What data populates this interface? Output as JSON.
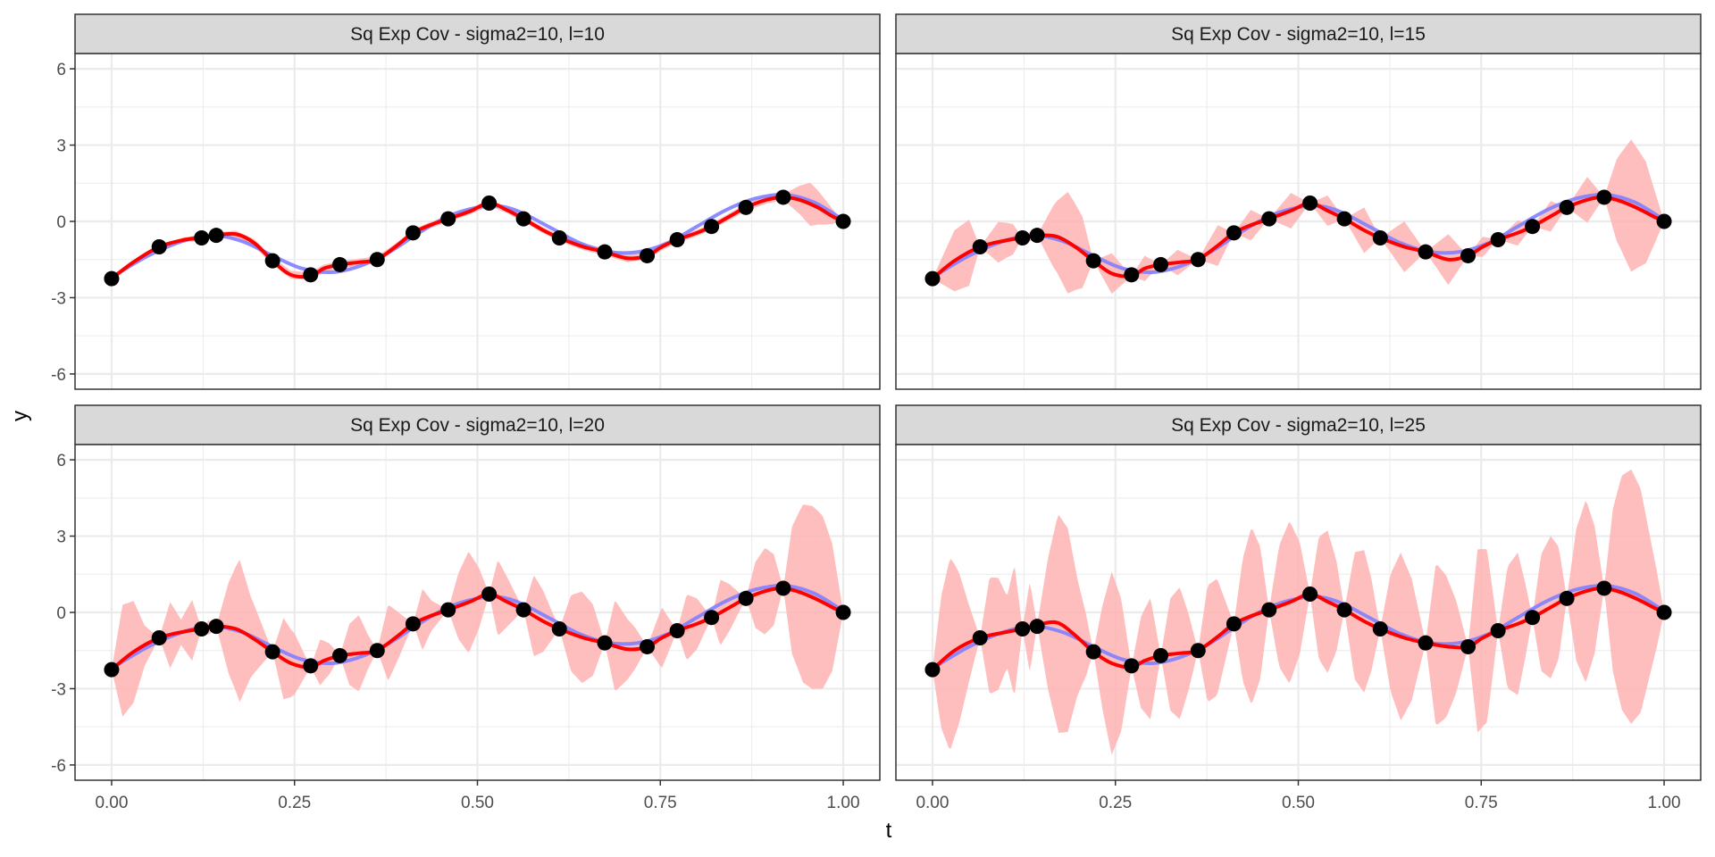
{
  "chart_data": {
    "type": "line",
    "xlabel": "t",
    "ylabel": "y",
    "xlim": [
      -0.05,
      1.05
    ],
    "ylim": [
      -6.6,
      6.6
    ],
    "x_ticks": [
      "0.00",
      "0.25",
      "0.50",
      "0.75",
      "1.00"
    ],
    "x_tick_values": [
      0,
      0.25,
      0.5,
      0.75,
      1
    ],
    "y_ticks": [
      "-6",
      "-3",
      "0",
      "3",
      "6"
    ],
    "y_tick_values": [
      -6,
      -3,
      0,
      3,
      6
    ],
    "grid": true,
    "colors": {
      "true_curve": "#7f7fff",
      "fit_curve": "#ff0000",
      "band": "#ffb3b3",
      "points": "#000000",
      "strip_bg": "#d9d9d9",
      "grid": "#ebebeb",
      "panel_border": "#333333"
    },
    "observations": {
      "t": [
        0.0,
        0.065,
        0.123,
        0.143,
        0.22,
        0.272,
        0.312,
        0.363,
        0.412,
        0.46,
        0.516,
        0.563,
        0.612,
        0.674,
        0.732,
        0.773,
        0.82,
        0.867,
        0.918,
        1.0
      ],
      "y": [
        -2.25,
        -1.0,
        -0.65,
        -0.55,
        -1.55,
        -2.1,
        -1.7,
        -1.5,
        -0.45,
        0.1,
        0.72,
        0.1,
        -0.65,
        -1.2,
        -1.35,
        -0.72,
        -0.2,
        0.55,
        0.95,
        0.0
      ]
    },
    "panels": [
      {
        "title": "Sq Exp Cov - sigma2=10, l=10",
        "fit": {
          "t": [
            0.0,
            0.03,
            0.065,
            0.1,
            0.123,
            0.143,
            0.17,
            0.195,
            0.22,
            0.245,
            0.272,
            0.29,
            0.312,
            0.34,
            0.363,
            0.39,
            0.412,
            0.435,
            0.46,
            0.49,
            0.516,
            0.54,
            0.563,
            0.59,
            0.612,
            0.645,
            0.674,
            0.705,
            0.732,
            0.752,
            0.773,
            0.8,
            0.82,
            0.845,
            0.867,
            0.895,
            0.918,
            0.94,
            0.965,
            0.985,
            1.0
          ],
          "y": [
            -2.25,
            -1.6,
            -1.0,
            -0.72,
            -0.65,
            -0.55,
            -0.5,
            -0.85,
            -1.55,
            -2.1,
            -2.15,
            -1.85,
            -1.7,
            -1.6,
            -1.5,
            -0.95,
            -0.45,
            -0.15,
            0.1,
            0.4,
            0.72,
            0.45,
            0.1,
            -0.35,
            -0.65,
            -1.0,
            -1.2,
            -1.45,
            -1.35,
            -1.0,
            -0.72,
            -0.45,
            -0.2,
            0.2,
            0.55,
            0.85,
            0.95,
            0.85,
            0.55,
            0.2,
            0.0
          ]
        },
        "band_halfwidth": {
          "t": [
            0.0,
            0.1,
            0.2,
            0.3,
            0.4,
            0.5,
            0.6,
            0.7,
            0.8,
            0.9,
            0.918,
            0.935,
            0.955,
            0.975,
            1.0
          ],
          "w": [
            0.0,
            0.1,
            0.15,
            0.15,
            0.12,
            0.12,
            0.12,
            0.15,
            0.12,
            0.15,
            0.1,
            0.45,
            0.85,
            0.5,
            0.0
          ]
        }
      },
      {
        "title": "Sq Exp Cov - sigma2=10, l=15",
        "fit": {
          "t": [
            0.0,
            0.03,
            0.065,
            0.1,
            0.123,
            0.143,
            0.17,
            0.195,
            0.22,
            0.245,
            0.272,
            0.29,
            0.312,
            0.34,
            0.363,
            0.39,
            0.412,
            0.435,
            0.46,
            0.49,
            0.516,
            0.54,
            0.563,
            0.59,
            0.612,
            0.645,
            0.674,
            0.705,
            0.732,
            0.752,
            0.773,
            0.8,
            0.82,
            0.845,
            0.867,
            0.895,
            0.918,
            0.94,
            0.965,
            0.985,
            1.0
          ],
          "y": [
            -2.25,
            -1.55,
            -1.0,
            -0.75,
            -0.65,
            -0.55,
            -0.6,
            -1.0,
            -1.55,
            -2.05,
            -2.15,
            -1.85,
            -1.7,
            -1.6,
            -1.5,
            -0.95,
            -0.45,
            -0.15,
            0.1,
            0.42,
            0.72,
            0.42,
            0.1,
            -0.35,
            -0.65,
            -1.0,
            -1.2,
            -1.5,
            -1.35,
            -1.0,
            -0.72,
            -0.45,
            -0.2,
            0.2,
            0.55,
            0.85,
            0.95,
            0.8,
            0.5,
            0.2,
            0.0
          ]
        },
        "band_halfwidth": {
          "t": [
            0.0,
            0.03,
            0.05,
            0.065,
            0.09,
            0.11,
            0.123,
            0.133,
            0.143,
            0.165,
            0.185,
            0.205,
            0.22,
            0.245,
            0.272,
            0.29,
            0.312,
            0.335,
            0.363,
            0.39,
            0.412,
            0.435,
            0.46,
            0.49,
            0.516,
            0.54,
            0.563,
            0.59,
            0.612,
            0.645,
            0.674,
            0.705,
            0.732,
            0.752,
            0.773,
            0.8,
            0.82,
            0.845,
            0.867,
            0.895,
            0.918,
            0.935,
            0.955,
            0.975,
            1.0
          ],
          "w": [
            0.0,
            1.2,
            1.3,
            0.0,
            0.8,
            0.6,
            0.0,
            0.2,
            0.0,
            1.2,
            2.0,
            1.4,
            0.0,
            0.8,
            0.0,
            0.5,
            0.0,
            0.5,
            0.0,
            0.8,
            0.0,
            0.6,
            0.0,
            0.7,
            0.0,
            0.6,
            0.0,
            0.9,
            0.0,
            1.0,
            0.0,
            1.0,
            0.0,
            0.4,
            0.0,
            0.5,
            0.0,
            0.6,
            0.0,
            0.9,
            0.0,
            1.6,
            2.6,
            2.0,
            0.0
          ]
        }
      },
      {
        "title": "Sq Exp Cov - sigma2=10, l=20",
        "fit": {
          "t": [
            0.0,
            0.03,
            0.065,
            0.1,
            0.123,
            0.143,
            0.17,
            0.195,
            0.22,
            0.245,
            0.272,
            0.29,
            0.312,
            0.34,
            0.363,
            0.39,
            0.412,
            0.435,
            0.46,
            0.49,
            0.516,
            0.54,
            0.563,
            0.59,
            0.612,
            0.645,
            0.674,
            0.705,
            0.732,
            0.752,
            0.773,
            0.8,
            0.82,
            0.845,
            0.867,
            0.895,
            0.918,
            0.94,
            0.965,
            0.985,
            1.0
          ],
          "y": [
            -2.25,
            -1.55,
            -1.0,
            -0.75,
            -0.65,
            -0.55,
            -0.65,
            -1.05,
            -1.55,
            -2.0,
            -2.15,
            -1.9,
            -1.7,
            -1.6,
            -1.5,
            -0.95,
            -0.45,
            -0.15,
            0.1,
            0.42,
            0.72,
            0.42,
            0.1,
            -0.35,
            -0.65,
            -1.0,
            -1.2,
            -1.45,
            -1.35,
            -1.0,
            -0.72,
            -0.45,
            -0.2,
            0.2,
            0.55,
            0.85,
            0.95,
            0.8,
            0.5,
            0.2,
            0.0
          ]
        },
        "band_halfwidth": {
          "t": [
            0.0,
            0.015,
            0.03,
            0.045,
            0.065,
            0.08,
            0.095,
            0.11,
            0.123,
            0.133,
            0.143,
            0.16,
            0.175,
            0.19,
            0.205,
            0.22,
            0.235,
            0.25,
            0.272,
            0.285,
            0.298,
            0.312,
            0.325,
            0.338,
            0.35,
            0.363,
            0.378,
            0.39,
            0.412,
            0.425,
            0.437,
            0.46,
            0.474,
            0.488,
            0.502,
            0.516,
            0.528,
            0.54,
            0.563,
            0.577,
            0.59,
            0.612,
            0.628,
            0.643,
            0.658,
            0.674,
            0.688,
            0.702,
            0.716,
            0.732,
            0.752,
            0.773,
            0.786,
            0.8,
            0.82,
            0.832,
            0.845,
            0.867,
            0.88,
            0.893,
            0.905,
            0.918,
            0.93,
            0.945,
            0.958,
            0.972,
            0.985,
            1.0
          ],
          "w": [
            0.0,
            2.2,
            2.0,
            0.8,
            0.0,
            1.3,
            0.5,
            1.2,
            0.0,
            0.3,
            0.0,
            1.8,
            2.8,
            1.6,
            0.8,
            0.0,
            1.6,
            1.2,
            0.0,
            0.9,
            0.6,
            0.0,
            1.2,
            1.5,
            0.7,
            0.0,
            1.5,
            1.0,
            0.0,
            1.2,
            0.6,
            0.0,
            1.3,
            2.0,
            1.2,
            0.0,
            1.5,
            1.0,
            0.0,
            1.6,
            1.2,
            0.0,
            1.5,
            1.8,
            1.4,
            0.0,
            1.8,
            1.3,
            0.8,
            0.0,
            1.2,
            0.0,
            1.3,
            1.0,
            0.0,
            1.3,
            0.9,
            0.0,
            1.3,
            1.7,
            1.4,
            0.0,
            2.5,
            3.5,
            3.6,
            3.4,
            2.5,
            0.0
          ]
        }
      },
      {
        "title": "Sq Exp Cov - sigma2=10, l=25",
        "fit": {
          "t": [
            0.0,
            0.03,
            0.065,
            0.1,
            0.123,
            0.143,
            0.17,
            0.195,
            0.22,
            0.245,
            0.272,
            0.29,
            0.312,
            0.34,
            0.363,
            0.39,
            0.412,
            0.435,
            0.46,
            0.49,
            0.516,
            0.54,
            0.563,
            0.59,
            0.612,
            0.645,
            0.674,
            0.705,
            0.732,
            0.752,
            0.773,
            0.8,
            0.82,
            0.845,
            0.867,
            0.895,
            0.918,
            0.94,
            0.965,
            0.985,
            1.0
          ],
          "y": [
            -2.25,
            -1.5,
            -1.0,
            -0.78,
            -0.65,
            -0.5,
            -0.4,
            -0.9,
            -1.55,
            -2.0,
            -2.15,
            -1.9,
            -1.7,
            -1.6,
            -1.5,
            -0.95,
            -0.45,
            -0.15,
            0.1,
            0.42,
            0.72,
            0.42,
            0.1,
            -0.35,
            -0.65,
            -1.0,
            -1.2,
            -1.35,
            -1.35,
            -1.0,
            -0.72,
            -0.45,
            -0.2,
            0.2,
            0.55,
            0.85,
            0.95,
            0.8,
            0.5,
            0.2,
            0.0
          ]
        },
        "band_halfwidth": {
          "t": [
            0.0,
            0.012,
            0.024,
            0.036,
            0.05,
            0.065,
            0.078,
            0.09,
            0.102,
            0.112,
            0.123,
            0.133,
            0.143,
            0.158,
            0.172,
            0.185,
            0.198,
            0.21,
            0.22,
            0.232,
            0.245,
            0.258,
            0.272,
            0.285,
            0.298,
            0.312,
            0.325,
            0.338,
            0.35,
            0.363,
            0.376,
            0.389,
            0.4,
            0.412,
            0.424,
            0.436,
            0.448,
            0.46,
            0.474,
            0.488,
            0.502,
            0.516,
            0.528,
            0.54,
            0.552,
            0.563,
            0.577,
            0.59,
            0.6,
            0.612,
            0.626,
            0.64,
            0.655,
            0.674,
            0.688,
            0.702,
            0.716,
            0.732,
            0.745,
            0.758,
            0.773,
            0.786,
            0.8,
            0.81,
            0.82,
            0.832,
            0.845,
            0.856,
            0.867,
            0.88,
            0.893,
            0.905,
            0.918,
            0.93,
            0.942,
            0.955,
            0.968,
            0.98,
            0.99,
            1.0
          ],
          "w": [
            0.0,
            2.6,
            3.8,
            3.0,
            1.5,
            0.0,
            2.3,
            2.2,
            1.4,
            2.6,
            0.0,
            1.8,
            0.0,
            2.6,
            4.3,
            4.0,
            2.3,
            1.2,
            0.0,
            2.0,
            3.6,
            2.6,
            0.0,
            1.8,
            2.4,
            0.0,
            2.2,
            2.6,
            1.5,
            0.0,
            2.3,
            2.3,
            1.2,
            0.0,
            2.4,
            3.5,
            2.6,
            0.0,
            2.4,
            3.2,
            2.2,
            0.0,
            2.4,
            2.8,
            1.8,
            0.0,
            2.5,
            2.8,
            1.8,
            0.0,
            2.3,
            3.3,
            2.4,
            0.0,
            3.2,
            2.8,
            1.8,
            0.0,
            3.6,
            3.4,
            0.0,
            2.4,
            2.8,
            1.5,
            0.0,
            2.3,
            2.8,
            2.2,
            0.0,
            2.6,
            3.6,
            2.5,
            0.0,
            3.2,
            4.6,
            5.0,
            4.4,
            2.8,
            1.5,
            0.0
          ]
        }
      }
    ],
    "true_curve": {
      "t": [
        0.0,
        0.05,
        0.1,
        0.14,
        0.18,
        0.22,
        0.26,
        0.3,
        0.34,
        0.38,
        0.42,
        0.46,
        0.5,
        0.53,
        0.56,
        0.6,
        0.64,
        0.68,
        0.72,
        0.76,
        0.8,
        0.84,
        0.88,
        0.92,
        0.96,
        1.0
      ],
      "y": [
        -2.2,
        -1.35,
        -0.75,
        -0.55,
        -0.8,
        -1.35,
        -1.85,
        -2.0,
        -1.75,
        -1.2,
        -0.45,
        0.2,
        0.55,
        0.6,
        0.35,
        -0.25,
        -0.85,
        -1.2,
        -1.2,
        -0.85,
        -0.2,
        0.45,
        0.9,
        1.05,
        0.75,
        0.05
      ]
    }
  }
}
